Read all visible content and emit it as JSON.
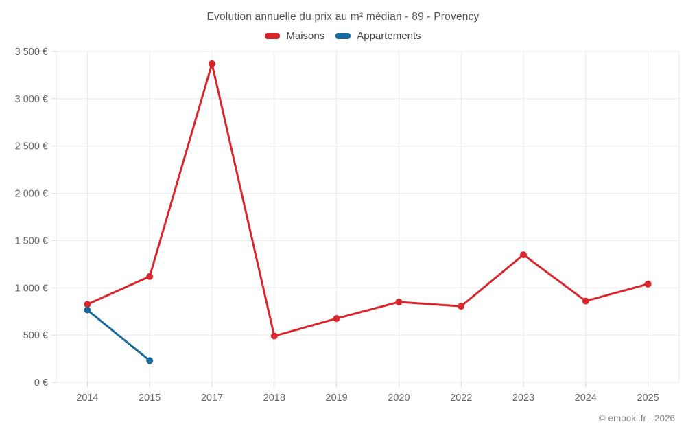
{
  "page": {
    "footer": "© emooki.fr - 2026"
  },
  "legend": [
    {
      "label": "Maisons",
      "color": "#d9262c"
    },
    {
      "label": "Appartements",
      "color": "#17689d"
    }
  ],
  "chart_data": {
    "type": "line",
    "title": "Evolution annuelle du prix au m² médian - 89 - Provency",
    "categories": [
      "2014",
      "2015",
      "2017",
      "2018",
      "2019",
      "2020",
      "2022",
      "2023",
      "2024",
      "2025"
    ],
    "series": [
      {
        "name": "Maisons",
        "color": "#d9262c",
        "values": [
          825,
          1120,
          3370,
          490,
          675,
          850,
          805,
          1350,
          860,
          1040
        ]
      },
      {
        "name": "Appartements",
        "color": "#17689d",
        "values": [
          765,
          230,
          null,
          null,
          null,
          null,
          null,
          null,
          null,
          null
        ]
      }
    ],
    "ylim": [
      0,
      3500
    ],
    "y_tick_step": 500,
    "y_tick_labels": [
      "0 €",
      "500 €",
      "1 000 €",
      "1 500 €",
      "2 000 €",
      "2 500 €",
      "3 000 €",
      "3 500 €"
    ],
    "xlabel": "",
    "ylabel": "",
    "grid": true,
    "legend_position": "top",
    "colors": {
      "grid": "#e9e9e9",
      "tick": "#d6d6d6",
      "axis_label": "#666666",
      "background": "#ffffff"
    }
  }
}
